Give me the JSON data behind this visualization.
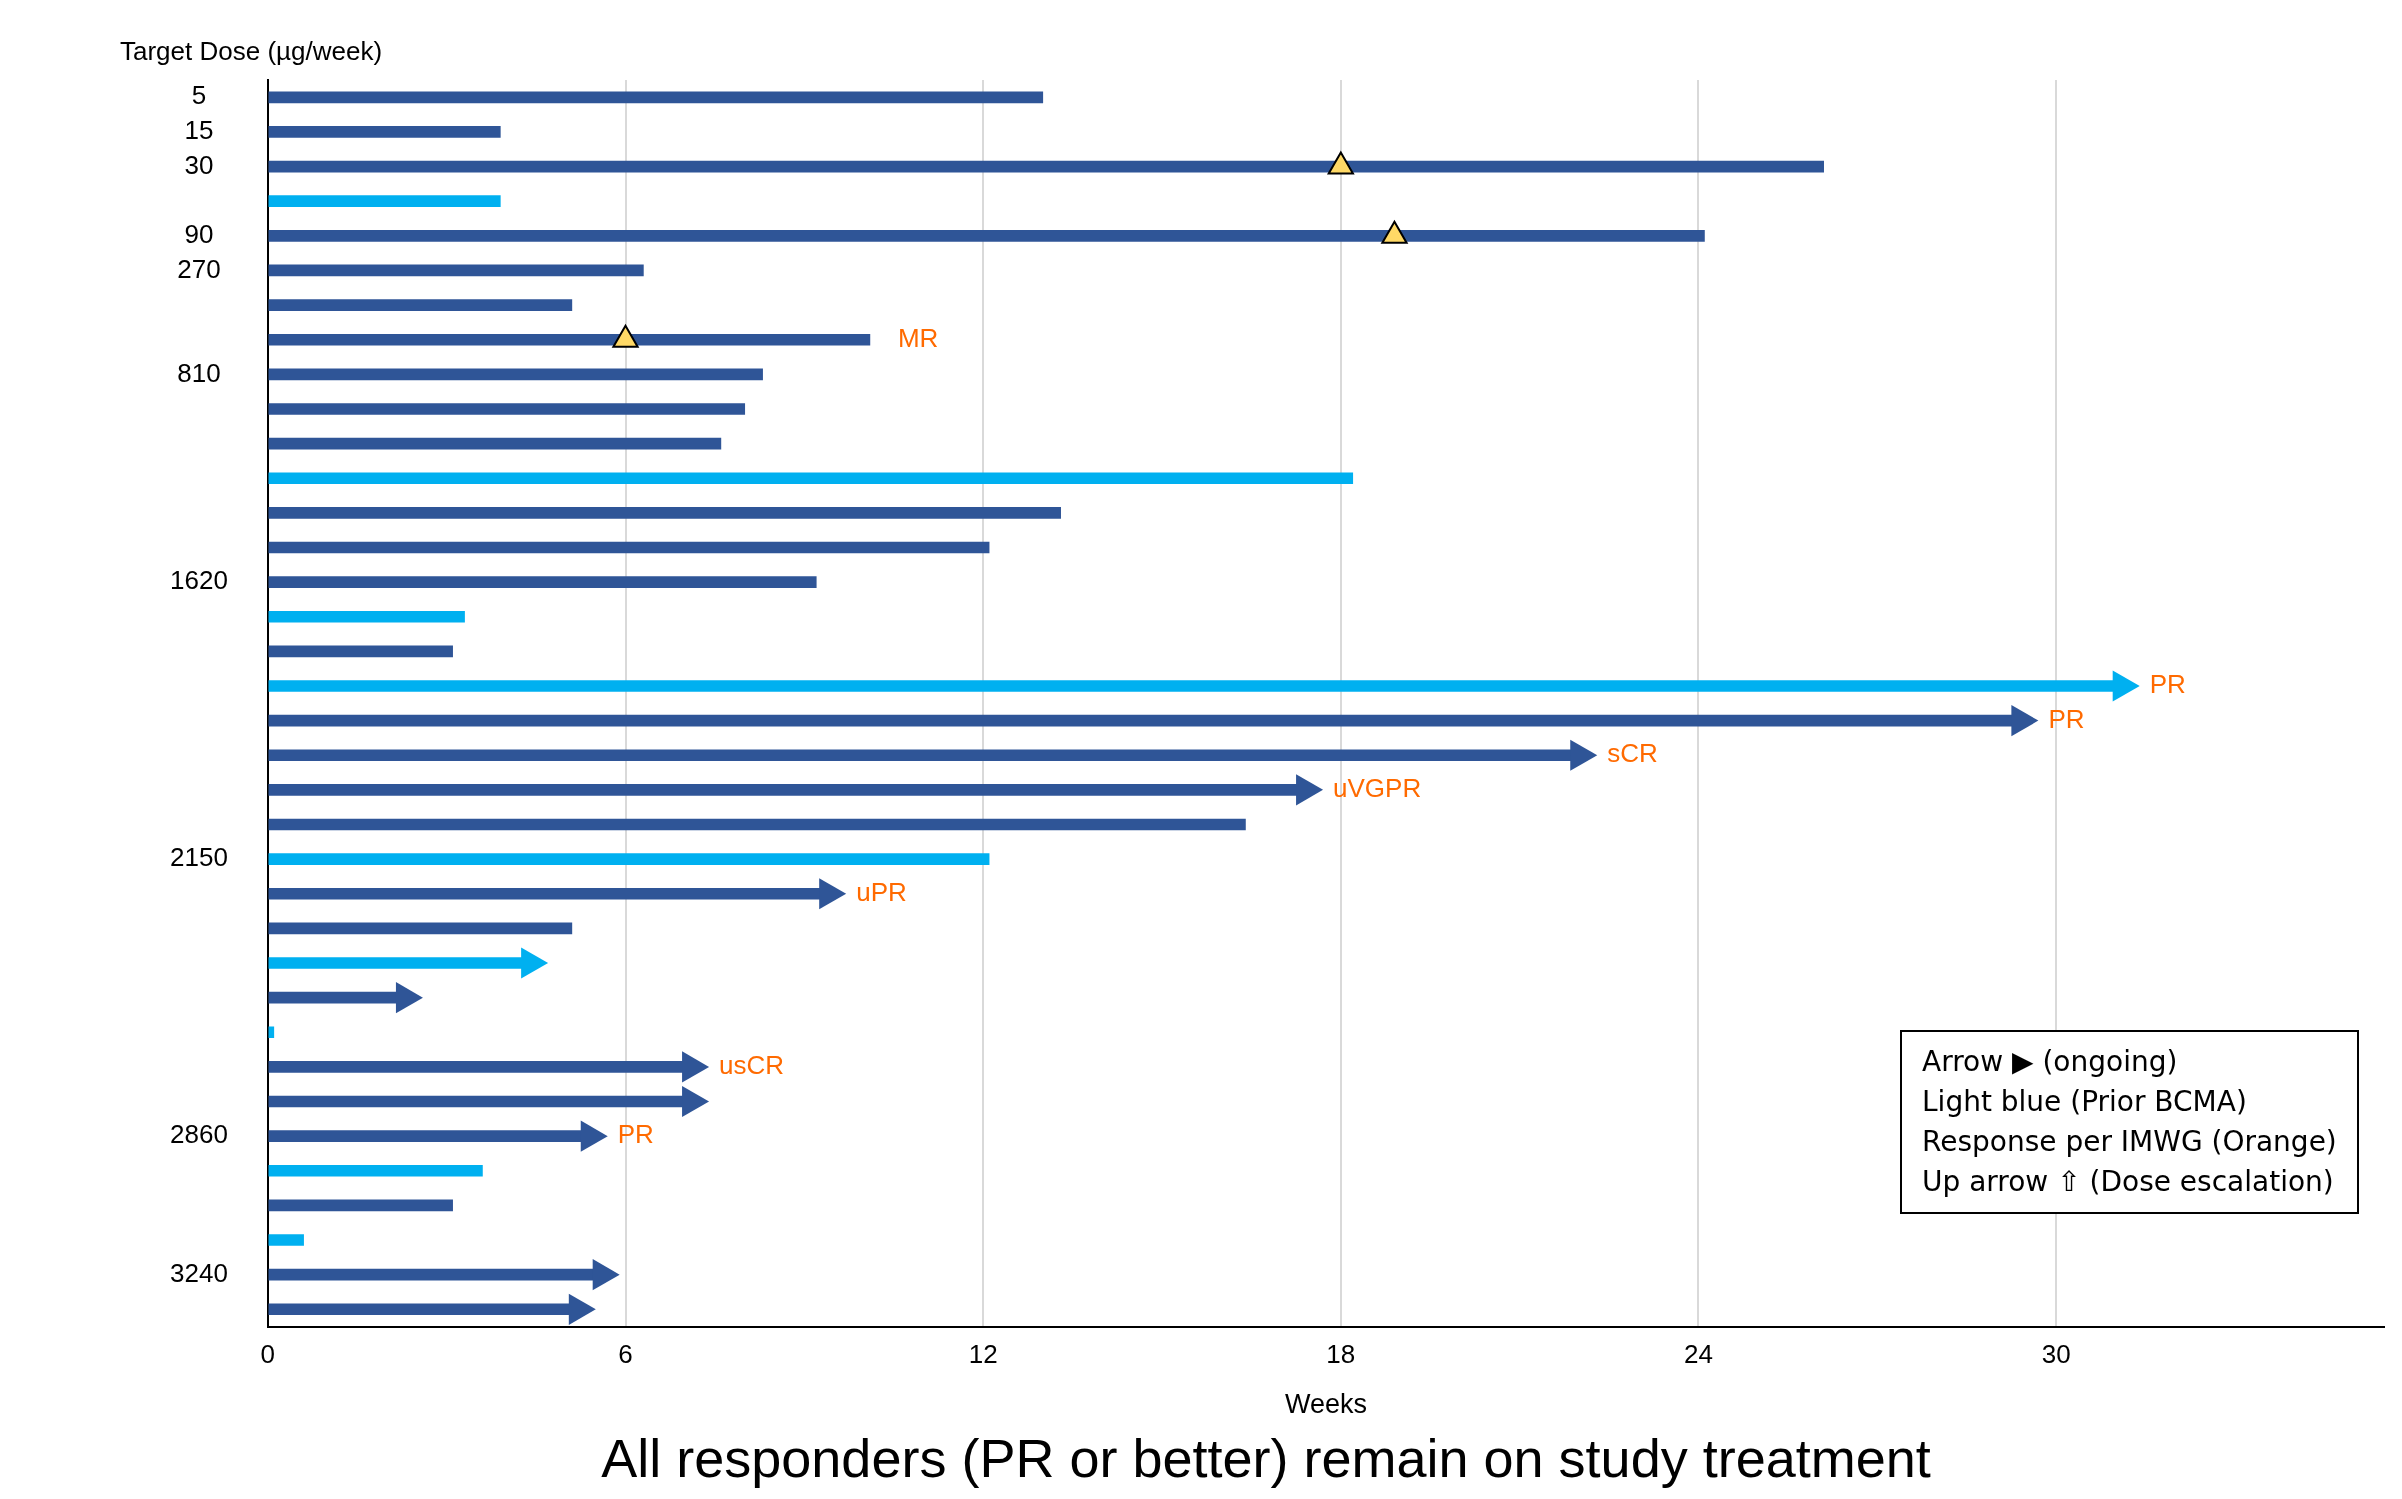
{
  "chart_data": {
    "type": "bar",
    "orientation": "horizontal",
    "title": "All responders (PR or better) remain on study treatment",
    "xlabel": "Weeks",
    "ylabel": "Target Dose (µg/week)",
    "categories": [
      "5",
      "15",
      "30",
      null,
      "90",
      "270",
      null,
      null,
      "810",
      null,
      null,
      null,
      null,
      null,
      "1620",
      null,
      null,
      null,
      null,
      null,
      null,
      null,
      "2150",
      null,
      null,
      null,
      null,
      null,
      null,
      null,
      "2860",
      null,
      null,
      null,
      "3240",
      null
    ],
    "series": [
      {
        "colors": [
          "#2f5597",
          "#2f5597",
          "#2f5597",
          "#00b0f0",
          "#2f5597",
          "#2f5597",
          "#2f5597",
          "#2f5597",
          "#2f5597",
          "#2f5597",
          "#2f5597",
          "#00b0f0",
          "#2f5597",
          "#2f5597",
          "#2f5597",
          "#00b0f0",
          "#2f5597",
          "#00b0f0",
          "#2f5597",
          "#2f5597",
          "#2f5597",
          "#2f5597",
          "#00b0f0",
          "#2f5597",
          "#2f5597",
          "#00b0f0",
          "#2f5597",
          "#00b0f0",
          "#2f5597",
          "#2f5597",
          "#2f5597",
          "#00b0f0",
          "#2f5597",
          "#00b0f0",
          "#2f5597",
          "#2f5597"
        ],
        "values": [
          13.0,
          3.9,
          26.1,
          3.9,
          24.1,
          6.3,
          5.1,
          10.1,
          8.3,
          8.0,
          7.6,
          18.2,
          13.3,
          12.1,
          9.2,
          3.3,
          3.1,
          31.1,
          29.4,
          22.0,
          17.4,
          16.4,
          12.1,
          9.4,
          5.1,
          4.4,
          2.3,
          0.1,
          7.1,
          7.1,
          5.4,
          3.6,
          3.1,
          0.6,
          5.6,
          5.2
        ],
        "value_labels": [
          null,
          null,
          null,
          null,
          null,
          null,
          null,
          "MR",
          null,
          null,
          null,
          null,
          null,
          null,
          null,
          null,
          null,
          "PR",
          "PR",
          "sCR",
          "uVGPR",
          null,
          null,
          "uPR",
          null,
          null,
          null,
          null,
          "usCR",
          null,
          "PR",
          null,
          null,
          null,
          null,
          null
        ]
      },
      {
        "type": "scatter",
        "marker": "triangle",
        "colors": [
          null,
          null,
          null,
          null,
          null,
          null,
          null,
          null,
          null,
          null,
          null,
          null,
          null,
          null,
          null,
          null,
          null,
          "#00b0f0",
          "#2f5597",
          "#2f5597",
          "#2f5597",
          null,
          null,
          "#2f5597",
          null,
          "#00b0f0",
          "#2f5597",
          null,
          "#2f5597",
          "#2f5597",
          "#2f5597",
          null,
          null,
          null,
          "#2f5597",
          "#2f5597"
        ],
        "values": [
          null,
          null,
          null,
          null,
          null,
          null,
          null,
          null,
          null,
          null,
          null,
          null,
          null,
          null,
          null,
          null,
          null,
          31.1,
          29.4,
          22.0,
          17.4,
          null,
          null,
          9.4,
          null,
          4.4,
          2.3,
          null,
          7.1,
          7.1,
          5.4,
          null,
          null,
          null,
          5.6,
          5.2
        ]
      },
      {
        "type": "scatter",
        "marker": "triangle",
        "color": "#ffd966",
        "values": [
          null,
          null,
          18.0,
          null,
          18.9,
          null,
          null,
          6.0,
          null,
          null,
          null,
          null,
          null,
          null,
          null,
          null,
          null,
          null,
          null,
          null,
          null,
          null,
          null,
          null,
          null,
          null,
          null,
          null,
          null,
          null,
          null,
          null,
          null,
          null,
          null,
          null
        ]
      }
    ],
    "xlim": [
      0,
      35.5
    ],
    "xticks": [
      0,
      6,
      12,
      18,
      24,
      30
    ],
    "grid": "x",
    "annotations": [
      "Arrow ▶ (ongoing)",
      "Light blue (Prior BCMA)",
      "Response per IMWG (Orange)",
      "Up arrow ⇧ (Dose escalation)"
    ]
  }
}
